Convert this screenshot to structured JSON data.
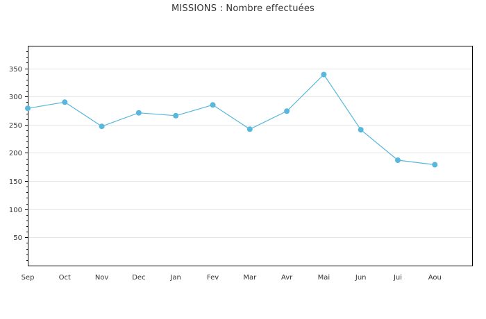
{
  "chart_data": {
    "type": "line",
    "title": "MISSIONS : Nombre effectuées",
    "xlabel": "",
    "ylabel": "",
    "categories": [
      "Sep",
      "Oct",
      "Nov",
      "Dec",
      "Jan",
      "Fev",
      "Mar",
      "Avr",
      "Mai",
      "Jun",
      "Jui",
      "Aou"
    ],
    "series": [
      {
        "values": [
          279,
          290,
          247,
          271,
          266,
          285,
          242,
          274,
          339,
          241,
          187,
          179
        ]
      }
    ],
    "ylim": [
      0,
      390
    ],
    "yticks": [
      50,
      100,
      150,
      200,
      250,
      300,
      350
    ],
    "grid": true,
    "legend": "none",
    "colors": {
      "line": "#58b7dc",
      "grid": "#e6e6e6",
      "axis": "#000000"
    }
  }
}
